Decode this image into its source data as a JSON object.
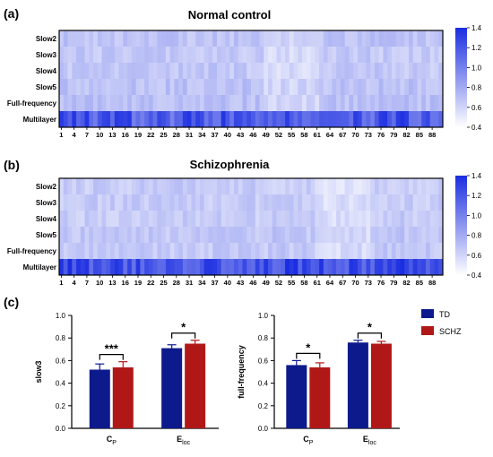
{
  "panel_labels": [
    "(a)",
    "(b)",
    "(c)"
  ],
  "chart_data": [
    {
      "type": "heatmap",
      "title": "Normal control",
      "rows": [
        "Slow2",
        "Slow3",
        "Slow4",
        "Slow5",
        "Full-frequency",
        "Multilayer"
      ],
      "x_ticks": [
        "1",
        "4",
        "7",
        "10",
        "13",
        "16",
        "19",
        "22",
        "25",
        "28",
        "31",
        "34",
        "37",
        "40",
        "43",
        "46",
        "49",
        "52",
        "55",
        "58",
        "61",
        "64",
        "67",
        "70",
        "73",
        "76",
        "79",
        "82",
        "85",
        "88"
      ],
      "n_columns": 90,
      "colorbar": {
        "ticks": [
          "0.4",
          "0.6",
          "0.8",
          "1.0",
          "1.2",
          "1.4"
        ],
        "min": 0.4,
        "max": 1.4
      },
      "row_means": [
        0.68,
        0.66,
        0.66,
        0.69,
        0.7,
        1.18
      ],
      "low_region_cols": [
        48,
        60
      ],
      "colors": {
        "low": "#ffffff",
        "high": "#1a2de0"
      }
    },
    {
      "type": "heatmap",
      "title": "Schizophrenia",
      "rows": [
        "Slow2",
        "Slow3",
        "Slow4",
        "Slow5",
        "Full-frequency",
        "Multilayer"
      ],
      "x_ticks": [
        "1",
        "4",
        "7",
        "10",
        "13",
        "16",
        "19",
        "22",
        "25",
        "28",
        "31",
        "34",
        "37",
        "40",
        "43",
        "46",
        "49",
        "52",
        "55",
        "58",
        "61",
        "64",
        "67",
        "70",
        "73",
        "76",
        "79",
        "82",
        "85",
        "88"
      ],
      "n_columns": 90,
      "colorbar": {
        "ticks": [
          "0.4",
          "0.6",
          "0.8",
          "1.0",
          "1.2",
          "1.4"
        ],
        "min": 0.4,
        "max": 1.4
      },
      "row_means": [
        0.64,
        0.64,
        0.64,
        0.67,
        0.66,
        1.26
      ],
      "low_region_cols": [
        60,
        72
      ],
      "colors": {
        "low": "#ffffff",
        "high": "#1a2de0"
      }
    },
    {
      "type": "bar",
      "ylabel": "slow3",
      "ylim": [
        0,
        1.0
      ],
      "y_ticks": [
        "0.0",
        "0.2",
        "0.4",
        "0.6",
        "0.8",
        "1.0"
      ],
      "categories": [
        {
          "main": "C",
          "sub": "P"
        },
        {
          "main": "E",
          "sub": "loc"
        }
      ],
      "series": [
        {
          "name": "TD",
          "values": [
            0.52,
            0.71
          ],
          "errors": [
            0.05,
            0.03
          ],
          "color": "#0d1a8c"
        },
        {
          "name": "SCHZ",
          "values": [
            0.54,
            0.75
          ],
          "errors": [
            0.05,
            0.03
          ],
          "color": "#b01818"
        }
      ],
      "significance": [
        "***",
        "*"
      ]
    },
    {
      "type": "bar",
      "ylabel": "full-frequency",
      "ylim": [
        0,
        1.0
      ],
      "y_ticks": [
        "0.0",
        "0.2",
        "0.4",
        "0.6",
        "0.8",
        "1.0"
      ],
      "categories": [
        {
          "main": "C",
          "sub": "P"
        },
        {
          "main": "E",
          "sub": "loc"
        }
      ],
      "series": [
        {
          "name": "TD",
          "values": [
            0.56,
            0.76
          ],
          "errors": [
            0.04,
            0.02
          ],
          "color": "#0d1a8c"
        },
        {
          "name": "SCHZ",
          "values": [
            0.54,
            0.75
          ],
          "errors": [
            0.04,
            0.02
          ],
          "color": "#b01818"
        }
      ],
      "significance": [
        "*",
        "*"
      ]
    }
  ],
  "legend": [
    {
      "name": "TD",
      "color": "#0d1a8c"
    },
    {
      "name": "SCHZ",
      "color": "#b01818"
    }
  ]
}
